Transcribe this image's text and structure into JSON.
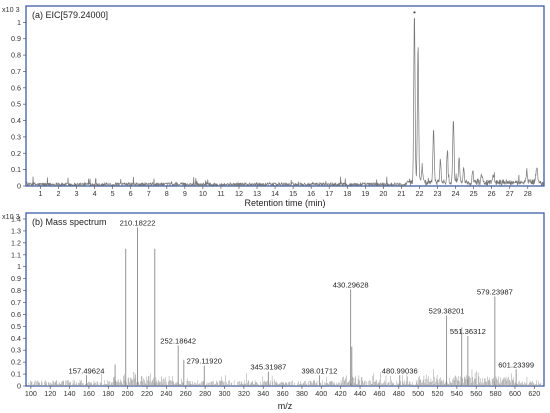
{
  "chart_data": [
    {
      "type": "line",
      "panel_title": "(a) EIC[579.24000]",
      "xlabel": "Retention time (min)",
      "ylabel": "",
      "y_scale_label": "x10 3",
      "xlim": [
        0.2,
        28.9
      ],
      "ylim": [
        0,
        1.1
      ],
      "x_ticks": [
        1,
        2,
        3,
        4,
        5,
        6,
        7,
        8,
        9,
        10,
        11,
        12,
        13,
        14,
        15,
        16,
        17,
        18,
        19,
        20,
        21,
        22,
        23,
        24,
        25,
        26,
        27,
        28
      ],
      "y_ticks": [
        0,
        0.1,
        0.2,
        0.3,
        0.4,
        0.5,
        0.6,
        0.7,
        0.8,
        0.9,
        1
      ],
      "line_color": "#777777",
      "frame_color": "#2f4f9f",
      "baseline_noise_level": 0.02,
      "annotation_marker": "▪",
      "peaks": [
        {
          "x": 21.72,
          "y": 1.03,
          "width": 0.05
        },
        {
          "x": 21.92,
          "y": 0.82,
          "width": 0.05
        },
        {
          "x": 22.15,
          "y": 0.1,
          "width": 0.05
        },
        {
          "x": 22.78,
          "y": 0.33,
          "width": 0.05
        },
        {
          "x": 23.16,
          "y": 0.13,
          "width": 0.05
        },
        {
          "x": 23.55,
          "y": 0.21,
          "width": 0.04
        },
        {
          "x": 23.88,
          "y": 0.4,
          "width": 0.05
        },
        {
          "x": 24.2,
          "y": 0.15,
          "width": 0.05
        },
        {
          "x": 24.45,
          "y": 0.09,
          "width": 0.05
        },
        {
          "x": 24.95,
          "y": 0.08,
          "width": 0.05
        },
        {
          "x": 25.45,
          "y": 0.05,
          "width": 0.06
        },
        {
          "x": 26.1,
          "y": 0.04,
          "width": 0.06
        },
        {
          "x": 27.95,
          "y": 0.06,
          "width": 0.06
        },
        {
          "x": 28.5,
          "y": 0.09,
          "width": 0.07
        }
      ]
    },
    {
      "type": "bar",
      "panel_title": "(b) Mass spectrum",
      "xlabel": "m/z",
      "ylabel": "",
      "y_scale_label": "x10 3",
      "xlim": [
        95,
        630
      ],
      "ylim": [
        0,
        1.45
      ],
      "x_ticks": [
        100,
        120,
        140,
        160,
        180,
        200,
        220,
        240,
        260,
        280,
        300,
        320,
        340,
        360,
        380,
        400,
        420,
        440,
        460,
        480,
        500,
        520,
        540,
        560,
        580,
        600,
        620
      ],
      "y_ticks": [
        0,
        0.1,
        0.2,
        0.3,
        0.4,
        0.5,
        0.6,
        0.7,
        0.8,
        0.9,
        1,
        1.1,
        1.2,
        1.3,
        1.4
      ],
      "line_color": "#8a8a8a",
      "frame_color": "#2f4f9f",
      "labeled_peaks": [
        {
          "label": "157.49624",
          "mz": 157.49624,
          "intensity": 0.09
        },
        {
          "label": "210.18222",
          "mz": 210.18222,
          "intensity": 1.33
        },
        {
          "label": "252.18642",
          "mz": 252.18642,
          "intensity": 0.34
        },
        {
          "label": "279.11920",
          "mz": 279.1192,
          "intensity": 0.17
        },
        {
          "label": "345.31987",
          "mz": 345.31987,
          "intensity": 0.12
        },
        {
          "label": "398.01712",
          "mz": 398.01712,
          "intensity": 0.09
        },
        {
          "label": "430.29628",
          "mz": 430.29628,
          "intensity": 0.81
        },
        {
          "label": "480.99036",
          "mz": 480.99036,
          "intensity": 0.09
        },
        {
          "label": "529.38201",
          "mz": 529.38201,
          "intensity": 0.59
        },
        {
          "label": "551.36312",
          "mz": 551.36312,
          "intensity": 0.42
        },
        {
          "label": "579.23987",
          "mz": 579.23987,
          "intensity": 0.75
        },
        {
          "label": "601.23399",
          "mz": 601.23399,
          "intensity": 0.14
        }
      ],
      "unlabeled_peaks": [
        {
          "mz": 198.0,
          "intensity": 1.15
        },
        {
          "mz": 228.0,
          "intensity": 1.15
        },
        {
          "mz": 187.0,
          "intensity": 0.18
        },
        {
          "mz": 258.0,
          "intensity": 0.22
        },
        {
          "mz": 431.5,
          "intensity": 0.33
        },
        {
          "mz": 545.0,
          "intensity": 0.49
        }
      ]
    }
  ]
}
